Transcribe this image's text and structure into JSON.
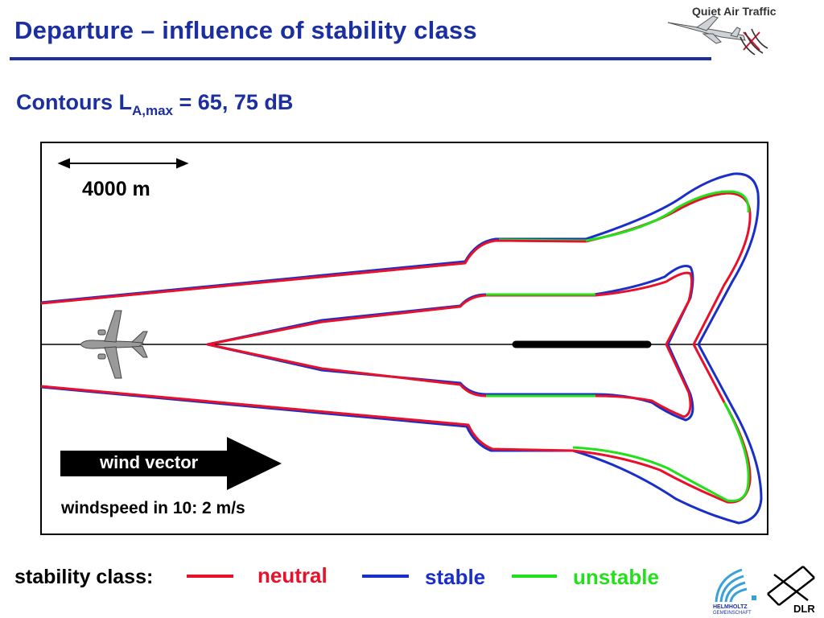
{
  "header": {
    "title": "Departure – influence of stability class",
    "brand": "Quiet Air Traffic"
  },
  "subtitle": {
    "prefix": "Contours L",
    "subscript": "A,max",
    "suffix": " = 65, 75 dB"
  },
  "diagram": {
    "scale_label": "4000 m",
    "wind_label": "wind vector",
    "windspeed_label": "windspeed in 10: 2 m/s"
  },
  "legend": {
    "title": "stability class:",
    "items": [
      {
        "label": "neutral",
        "color": "#e8102a"
      },
      {
        "label": "stable",
        "color": "#1a2fc8"
      },
      {
        "label": "unstable",
        "color": "#22e01a"
      }
    ]
  },
  "logos": {
    "helmholtz": "HELMHOLTZ GEMEINSCHAFT",
    "dlr": "DLR"
  },
  "colors": {
    "title": "#1c2fa0",
    "neutral": "#e8102a",
    "stable": "#1a2fc8",
    "unstable": "#22e01a"
  }
}
